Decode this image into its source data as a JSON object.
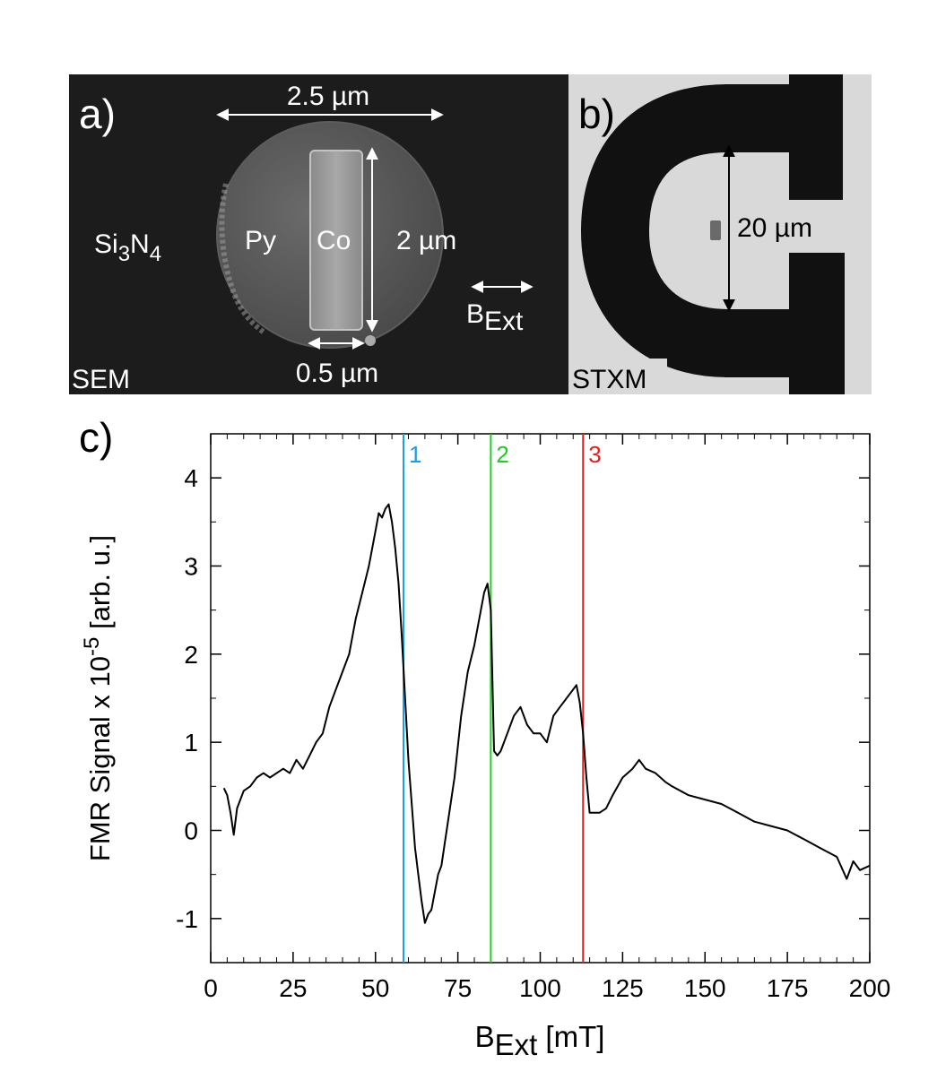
{
  "panel_a": {
    "letter": "a)",
    "corner_label": "SEM",
    "substrate": "Si",
    "substrate_sub1": "3",
    "substrate_mid": "N",
    "substrate_sub2": "4",
    "disk_label": "Py",
    "bar_label": "Co",
    "diameter_label": "2.5 µm",
    "length_label": "2 µm",
    "width_label": "0.5 µm",
    "field_label": "B",
    "field_sub": "Ext"
  },
  "panel_b": {
    "letter": "b)",
    "corner_label": "STXM",
    "gap_label": "20 µm"
  },
  "panel_c": {
    "letter": "c)"
  },
  "colors": {
    "line1": "#1a9fe0",
    "line2": "#22cc22",
    "line3": "#e02020",
    "trace": "#000000"
  },
  "chart_data": {
    "type": "line",
    "title": "",
    "xlabel_main": "B",
    "xlabel_sub": "Ext",
    "xlabel_unit": " [mT]",
    "ylabel_main": "FMR Signal x 10",
    "ylabel_exp": "-5",
    "ylabel_unit": " [arb. u.]",
    "xlim": [
      0,
      200
    ],
    "ylim": [
      -1.5,
      4.5
    ],
    "x_ticks": [
      0,
      25,
      50,
      75,
      100,
      125,
      150,
      175,
      200
    ],
    "y_ticks": [
      -1,
      0,
      1,
      2,
      3,
      4
    ],
    "vlines": [
      {
        "label": "1",
        "x": 58.5,
        "color": "#1a9fe0"
      },
      {
        "label": "2",
        "x": 85.0,
        "color": "#22cc22"
      },
      {
        "label": "3",
        "x": 113.0,
        "color": "#e02020"
      }
    ],
    "series": [
      {
        "name": "FMR signal",
        "x": [
          4,
          5,
          6,
          7,
          8,
          10,
          12,
          14,
          16,
          18,
          20,
          22,
          24,
          26,
          28,
          30,
          32,
          34,
          36,
          38,
          40,
          42,
          44,
          46,
          48,
          50,
          51,
          52,
          53,
          54,
          55,
          56,
          57,
          58,
          59,
          60,
          61,
          62,
          63,
          64,
          65,
          66,
          67,
          68,
          69,
          70,
          72,
          74,
          76,
          78,
          80,
          82,
          83,
          84,
          85,
          86,
          87,
          88,
          90,
          92,
          94,
          96,
          98,
          100,
          102,
          104,
          106,
          108,
          110,
          111,
          112,
          113,
          114,
          115,
          116,
          118,
          120,
          122,
          125,
          128,
          130,
          132,
          135,
          138,
          140,
          145,
          150,
          155,
          160,
          165,
          170,
          175,
          180,
          185,
          190,
          193,
          195,
          197,
          200
        ],
        "y": [
          0.48,
          0.4,
          0.2,
          -0.05,
          0.25,
          0.45,
          0.5,
          0.6,
          0.65,
          0.6,
          0.65,
          0.7,
          0.65,
          0.8,
          0.7,
          0.85,
          1.0,
          1.1,
          1.4,
          1.6,
          1.8,
          2.0,
          2.4,
          2.7,
          3.0,
          3.4,
          3.6,
          3.55,
          3.65,
          3.7,
          3.5,
          3.2,
          2.8,
          2.2,
          1.5,
          0.8,
          0.3,
          -0.2,
          -0.5,
          -0.8,
          -1.05,
          -0.95,
          -0.9,
          -0.7,
          -0.5,
          -0.4,
          0.1,
          0.6,
          1.3,
          1.8,
          2.1,
          2.5,
          2.7,
          2.8,
          2.5,
          0.9,
          0.85,
          0.9,
          1.1,
          1.3,
          1.4,
          1.2,
          1.1,
          1.1,
          1.0,
          1.3,
          1.4,
          1.5,
          1.6,
          1.65,
          1.45,
          1.1,
          0.6,
          0.2,
          0.2,
          0.2,
          0.25,
          0.4,
          0.6,
          0.7,
          0.8,
          0.7,
          0.65,
          0.55,
          0.5,
          0.4,
          0.35,
          0.3,
          0.2,
          0.1,
          0.05,
          0.0,
          -0.1,
          -0.2,
          -0.3,
          -0.55,
          -0.35,
          -0.45,
          -0.4
        ]
      }
    ]
  }
}
